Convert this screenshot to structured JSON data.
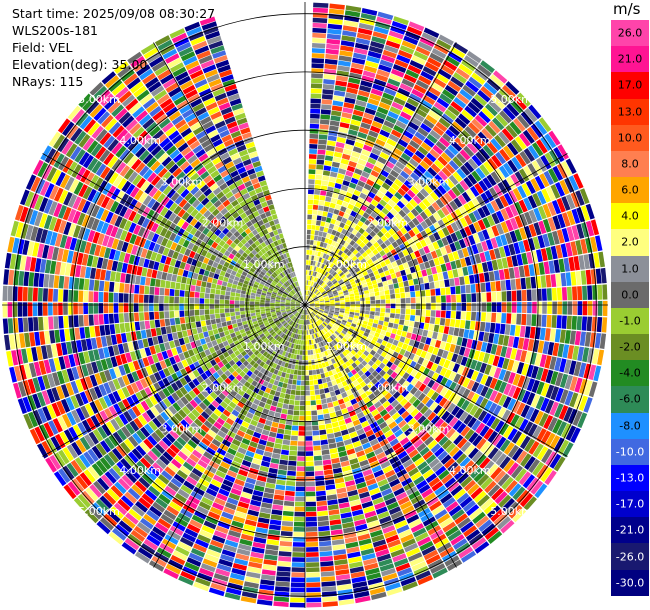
{
  "info": {
    "start_time": "Start time: 2025/09/08 08:30:27",
    "instrument": "WLS200s-181",
    "field": "Field: VEL",
    "elevation": "Elevation(deg): 35.00",
    "nrays": "NRays: 115"
  },
  "colorbar": {
    "unit": "m/s",
    "segments": [
      {
        "label": "26.0",
        "color": "#ff44aa"
      },
      {
        "label": "21.0",
        "color": "#ff1493"
      },
      {
        "label": "17.0",
        "color": "#ff0000"
      },
      {
        "label": "13.0",
        "color": "#ff3500"
      },
      {
        "label": "10.0",
        "color": "#ff5a1e"
      },
      {
        "label": "8.0",
        "color": "#ff7f50"
      },
      {
        "label": "6.0",
        "color": "#ffa500"
      },
      {
        "label": "4.0",
        "color": "#ffff00"
      },
      {
        "label": "2.0",
        "color": "#ffff7f"
      },
      {
        "label": "1.0",
        "color": "#8c9099"
      },
      {
        "label": "0.0",
        "color": "#6b6b6b"
      },
      {
        "label": "-1.0",
        "color": "#9acd32"
      },
      {
        "label": "-2.0",
        "color": "#6b8e23"
      },
      {
        "label": "-4.0",
        "color": "#228b22"
      },
      {
        "label": "-6.0",
        "color": "#2e8b57"
      },
      {
        "label": "-8.0",
        "color": "#1e90ff"
      },
      {
        "label": "-10.0",
        "color": "#4169e1"
      },
      {
        "label": "-13.0",
        "color": "#0000ff"
      },
      {
        "label": "-17.0",
        "color": "#0000cd"
      },
      {
        "label": "-21.0",
        "color": "#00008b"
      },
      {
        "label": "-26.0",
        "color": "#191970"
      },
      {
        "label": "-30.0",
        "color": "#000080"
      }
    ]
  },
  "chart_data": {
    "type": "heatmap",
    "projection": "polar-ppi",
    "range_rings_km": [
      1,
      2,
      3,
      4,
      5
    ],
    "ring_labels": [
      "1.00km",
      "2.00km",
      "3.00km",
      "4.00km",
      "5.00km"
    ],
    "max_range_km": 5.2,
    "nrays": 115,
    "missing_sector_deg": [
      -18,
      0
    ],
    "spokes_deg": [
      0,
      30,
      60,
      90,
      120,
      150,
      180,
      210,
      240,
      270,
      300,
      330
    ],
    "velocity_range_ms": [
      -30,
      26
    ],
    "near_field_pattern": {
      "east_half": "positive 1 to 4 m/s (yellow/gray)",
      "west_half": "negative -1 to -4 m/s (green)",
      "far_field": "noise across full range"
    }
  }
}
